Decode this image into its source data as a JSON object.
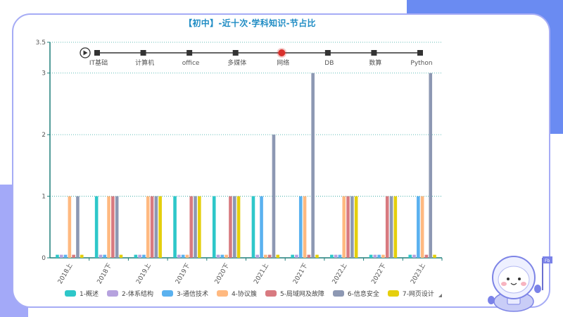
{
  "title": "【初中】-近十次·学科知识-节占比",
  "timeline": {
    "play_icon": "play-icon",
    "items": [
      "IT基础",
      "计算机",
      "office",
      "多媒体",
      "网络",
      "DB",
      "数算",
      "Python"
    ],
    "active_index": 4,
    "active_color": "#d9302c"
  },
  "mascot": {
    "name": "astronaut-mascot-icon",
    "flag_text": "Fb"
  },
  "chart_data": {
    "type": "bar",
    "title": "【初中】-近十次·学科知识-节占比",
    "xlabel": "",
    "ylabel": "",
    "ylim": [
      0,
      3.5
    ],
    "yticks": [
      0,
      1,
      2,
      3,
      3.5
    ],
    "grid": true,
    "legend_position": "bottom",
    "categories": [
      "2018上",
      "2018下",
      "2019上",
      "2019下",
      "2020下",
      "2021上",
      "2021下",
      "2022上",
      "2022下",
      "2023上"
    ],
    "series": [
      {
        "name": "1-概述",
        "color": "#2ec7c9",
        "values": [
          0.05,
          1,
          0.05,
          1,
          1,
          1,
          0.05,
          0.05,
          0.05,
          0.05
        ]
      },
      {
        "name": "2-体系结构",
        "color": "#b6a2de",
        "values": [
          0.05,
          0.05,
          0.05,
          0.05,
          0.05,
          0.05,
          0.05,
          0.05,
          0.05,
          0.05
        ]
      },
      {
        "name": "3-通信技术",
        "color": "#5ab1ef",
        "values": [
          0.05,
          0.05,
          0.05,
          0.05,
          0.05,
          1,
          1,
          0.05,
          0.05,
          1
        ]
      },
      {
        "name": "4-协议簇",
        "color": "#ffb980",
        "values": [
          1,
          1,
          1,
          0.05,
          0.05,
          0.05,
          1,
          1,
          0.05,
          1
        ]
      },
      {
        "name": "5-局域网及故障",
        "color": "#d87a80",
        "values": [
          0.05,
          1,
          1,
          1,
          1,
          0.05,
          0.05,
          1,
          1,
          0.05
        ]
      },
      {
        "name": "6-信息安全",
        "color": "#8d98b3",
        "values": [
          1,
          1,
          1,
          1,
          1,
          2,
          3,
          1,
          1,
          3
        ]
      },
      {
        "name": "7-网页设计",
        "color": "#e5cf0d",
        "values": [
          0.05,
          0.05,
          1,
          1,
          1,
          0.05,
          0.05,
          1,
          1,
          0.05
        ]
      }
    ]
  }
}
